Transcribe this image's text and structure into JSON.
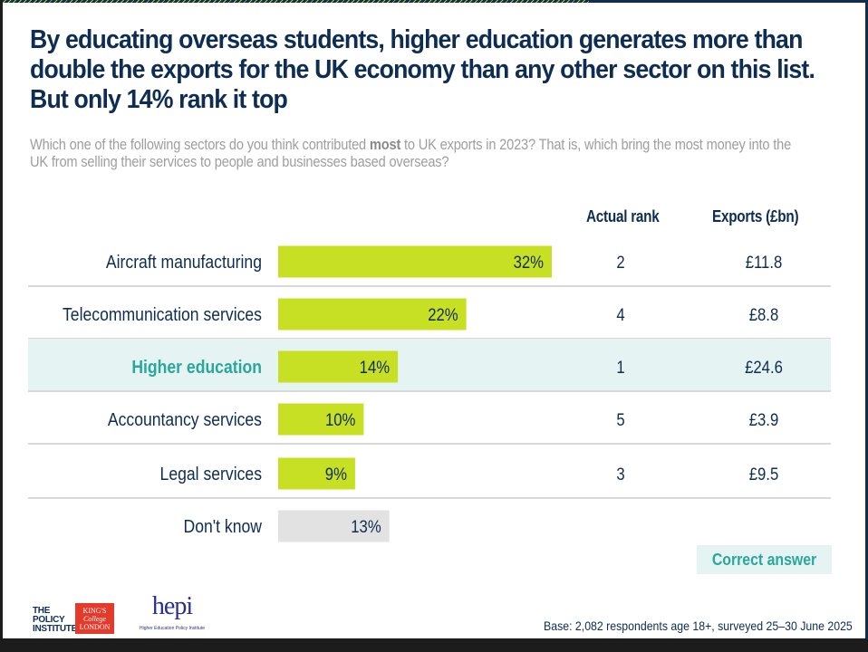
{
  "title": "By educating overseas students, higher education generates more than double the exports for the UK economy than any other sector on this list. But only 14% rank it top",
  "question": {
    "before": "Which one of the following sectors do you think contributed ",
    "emphasis": "most",
    "after": " to UK exports in 2023? That is, which bring the most money into the UK from selling their services to people and businesses based overseas?"
  },
  "columns": {
    "rank": "Actual rank",
    "exports": "Exports (£bn)"
  },
  "colors": {
    "navy": "#0e2d52",
    "bar": "#c8e024",
    "dont_know_bar": "#e2e2e2",
    "highlight_row": "#e5f4f3",
    "highlight_text": "#2aa79c",
    "divider": "#d9d9d9"
  },
  "chart_data": {
    "type": "bar",
    "orientation": "horizontal",
    "title": "By educating overseas students, higher education generates more than double the exports for the UK economy than any other sector on this list. But only 14% rank it top",
    "xlabel": "",
    "ylabel": "",
    "unit": "%",
    "xlim": [
      0,
      32
    ],
    "categories": [
      "Aircraft manufacturing",
      "Telecommunication services",
      "Higher education",
      "Accountancy services",
      "Legal services",
      "Don't know"
    ],
    "values": [
      32,
      22,
      14,
      10,
      9,
      13
    ],
    "value_labels": [
      "32%",
      "22%",
      "14%",
      "10%",
      "9%",
      "13%"
    ],
    "actual_rank": [
      "2",
      "4",
      "1",
      "5",
      "3",
      ""
    ],
    "exports_bn": [
      "£11.8",
      "£8.8",
      "£24.6",
      "£3.9",
      "£9.5",
      ""
    ],
    "highlighted_category": "Higher education",
    "grid": false
  },
  "legend": {
    "correct_answer": "Correct answer"
  },
  "footer": {
    "base": "Base: 2,082 respondents age 18+, surveyed 25–30 June 2025",
    "logos": {
      "policy_institute": [
        "THE",
        "POLICY",
        "INSTITUTE"
      ],
      "kings": [
        "KING'S",
        "College",
        "LONDON"
      ],
      "hepi": "hepi",
      "hepi_sub": "Higher Education Policy Institute"
    }
  }
}
